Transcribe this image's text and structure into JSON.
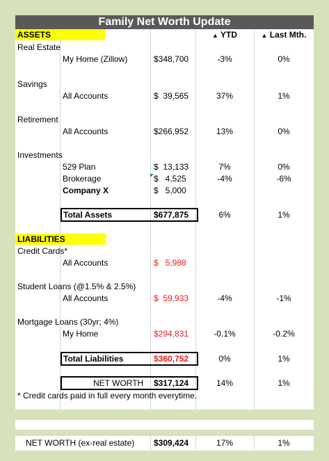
{
  "title": "Family Net Worth Update",
  "assets_header": "ASSETS",
  "col_ytd": "YTD",
  "col_last": "Last Mth.",
  "up_triangle": "▲",
  "assets": {
    "real_estate": {
      "label": "Real Estate",
      "item": "My Home (Zillow)",
      "amount": "$348,700",
      "ytd": "-3%",
      "last": "0%"
    },
    "savings": {
      "label": "Savings",
      "item": "All Accounts",
      "amount": "$  39,565",
      "ytd": "37%",
      "last": "1%"
    },
    "retirement": {
      "label": "Retirement",
      "item": "All Accounts",
      "amount": "$266,952",
      "ytd": "13%",
      "last": "0%"
    },
    "investments": {
      "label": "Investments",
      "items": [
        {
          "item": "529 Plan",
          "amount": "$  13,133",
          "ytd": "7%",
          "last": "0%"
        },
        {
          "item": "Brokerage",
          "amount": "$   4,525",
          "ytd": "-4%",
          "last": "-6%"
        },
        {
          "item": "Company X",
          "amount": "$   5,000",
          "ytd": "",
          "last": ""
        }
      ]
    },
    "total": {
      "label": "Total Assets",
      "amount": "$677,875",
      "ytd": "6%",
      "last": "1%"
    }
  },
  "liabilities_header": "LIABILITIES",
  "liabilities": {
    "credit": {
      "label": "Credit Cards*",
      "item": "All Accounts",
      "amount": "$   5,988",
      "ytd": "",
      "last": ""
    },
    "student": {
      "label": "Student Loans (@1.5% & 2.5%)",
      "item": "All Accounts",
      "amount": "$  59,933",
      "ytd": "-4%",
      "last": "-1%"
    },
    "mortgage": {
      "label": "Mortgage Loans (30yr; 4%)",
      "item": "My Home",
      "amount": "$294,831",
      "ytd": "-0.1%",
      "last": "-0.2%"
    },
    "total": {
      "label": "Total Liabilities",
      "amount": "$360,752",
      "ytd": "0%",
      "last": "1%"
    }
  },
  "net_worth": {
    "label": "NET WORTH",
    "amount": "$317,124",
    "ytd": "14%",
    "last": "1%"
  },
  "footnote": "* Credit cards paid in full every month everytime.",
  "net_worth_ex": {
    "label": "NET WORTH (ex-real estate)",
    "amount": "$309,424",
    "ytd": "17%",
    "last": "1%"
  },
  "colors": {
    "title_bg": "#595959",
    "yellow": "#ffff00",
    "red": "#e02020",
    "frame": "#d6e2bb"
  }
}
